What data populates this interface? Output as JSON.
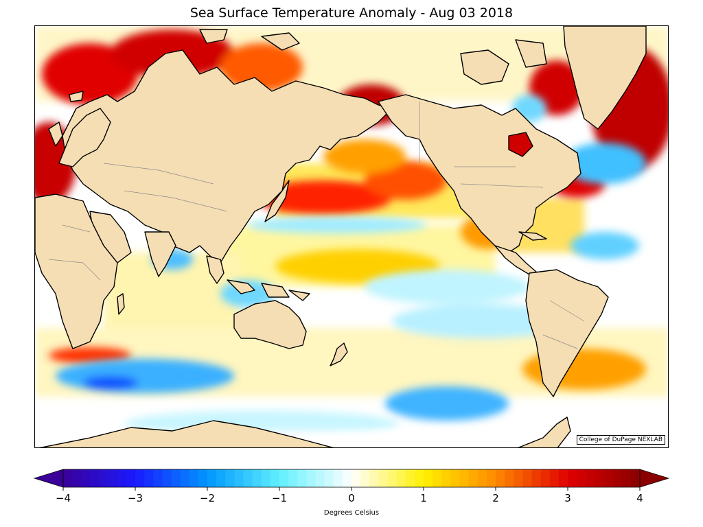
{
  "title": "Sea Surface Temperature Anomaly - Aug 03 2018",
  "credit": "College of DuPage NEXLAB",
  "colorbar": {
    "label": "Degrees Celsius",
    "min": -4,
    "max": 4,
    "ticks": [
      "−4",
      "−3",
      "−2",
      "−1",
      "0",
      "1",
      "2",
      "3",
      "4"
    ],
    "tick_values": [
      -4,
      -3,
      -2,
      -1,
      0,
      1,
      2,
      3,
      4
    ],
    "stops": [
      {
        "value": -4,
        "color": "#3a0099"
      },
      {
        "value": -3,
        "color": "#1a1aff"
      },
      {
        "value": -2,
        "color": "#0096ff"
      },
      {
        "value": -1,
        "color": "#60f0ff"
      },
      {
        "value": 0,
        "color": "#ffffff"
      },
      {
        "value": 1,
        "color": "#fff000"
      },
      {
        "value": 2,
        "color": "#ff8a00"
      },
      {
        "value": 3,
        "color": "#e00000"
      },
      {
        "value": 4,
        "color": "#8a0000"
      }
    ]
  },
  "colors": {
    "land": "#f5deb3",
    "coast": "#000000",
    "border": "#808080"
  }
}
